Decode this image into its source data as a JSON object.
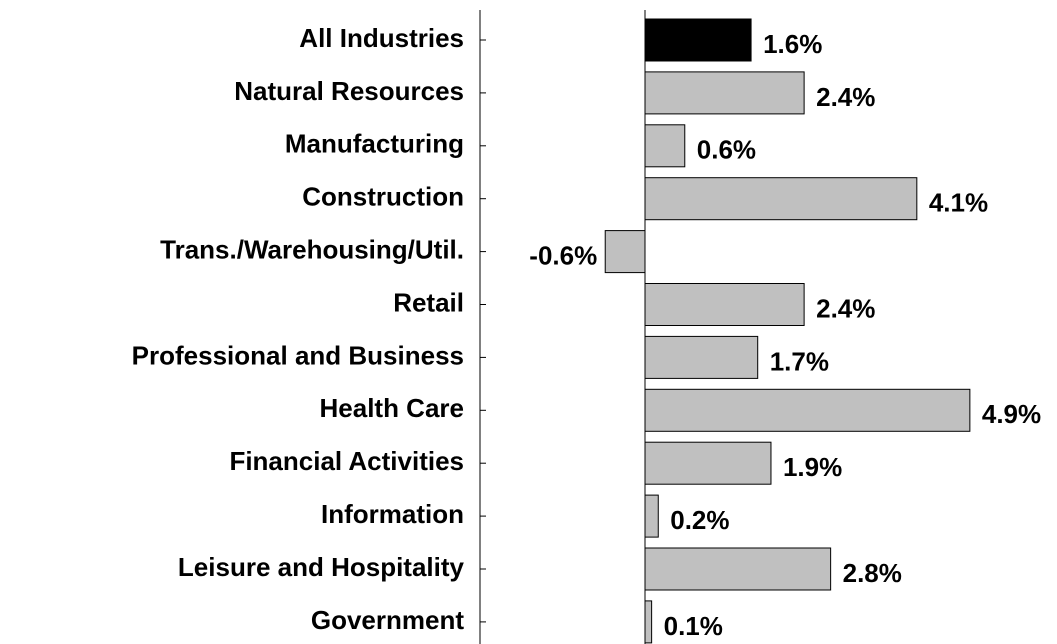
{
  "chart_data": {
    "type": "bar",
    "orientation": "horizontal",
    "categories": [
      "All Industries",
      "Natural Resources",
      "Manufacturing",
      "Construction",
      "Trans./Warehousing/Util.",
      "Retail",
      "Professional and Business",
      "Health Care",
      "Financial Activities",
      "Information",
      "Leisure and Hospitality",
      "Government"
    ],
    "values": [
      1.6,
      2.4,
      0.6,
      4.1,
      -0.6,
      2.4,
      1.7,
      4.9,
      1.9,
      0.2,
      2.8,
      0.1
    ],
    "value_labels": [
      "1.6%",
      "2.4%",
      "0.6%",
      "4.1%",
      "-0.6%",
      "2.4%",
      "1.7%",
      "4.9%",
      "1.9%",
      "0.2%",
      "2.8%",
      "0.1%"
    ],
    "colors": [
      "#000000",
      "#c0c0c0",
      "#c0c0c0",
      "#c0c0c0",
      "#c0c0c0",
      "#c0c0c0",
      "#c0c0c0",
      "#c0c0c0",
      "#c0c0c0",
      "#c0c0c0",
      "#c0c0c0",
      "#c0c0c0"
    ],
    "xlim": [
      -1,
      5
    ]
  }
}
